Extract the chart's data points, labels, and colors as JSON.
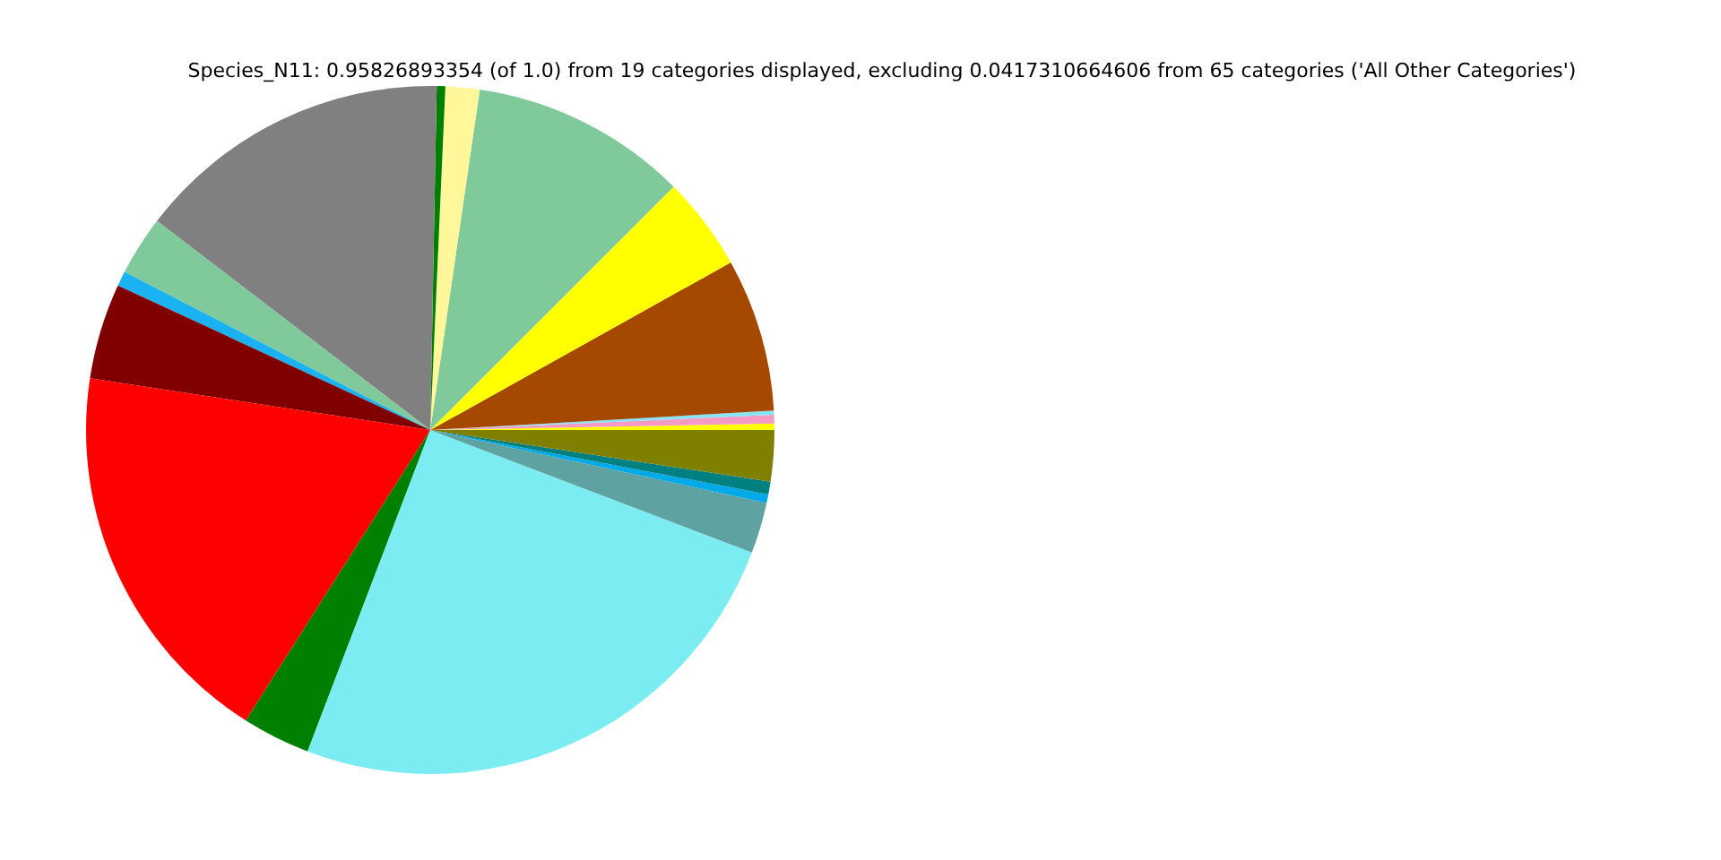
{
  "chart_data": {
    "type": "pie",
    "title": "Species_N11: 0.95826893354 (of 1.0) from 19 categories displayed, excluding 0.0417310664606 from 65 categories ('All Other Categories')",
    "categories": [
      null,
      null,
      null,
      null,
      null,
      null,
      null,
      null,
      null,
      null,
      null,
      null,
      null,
      null,
      null,
      null,
      null,
      null,
      null
    ],
    "values": [
      0.3,
      0.4,
      0.2,
      7.2,
      4.4,
      10.2,
      1.6,
      0.4,
      14.9,
      2.8,
      0.7,
      4.5,
      18.4,
      3.2,
      25.0,
      2.4,
      0.4,
      0.6,
      2.4
    ],
    "colors": [
      "#ffff00",
      "#f59ac4",
      "#87e3f5",
      "#a54800",
      "#ffff00",
      "#80c99b",
      "#fff79a",
      "#008000",
      "#808080",
      "#80c99b",
      "#1ab2f0",
      "#800000",
      "#ff0000",
      "#008000",
      "#7aecf2",
      "#5fa2a2",
      "#00a9e8",
      "#008080",
      "#808000"
    ]
  }
}
